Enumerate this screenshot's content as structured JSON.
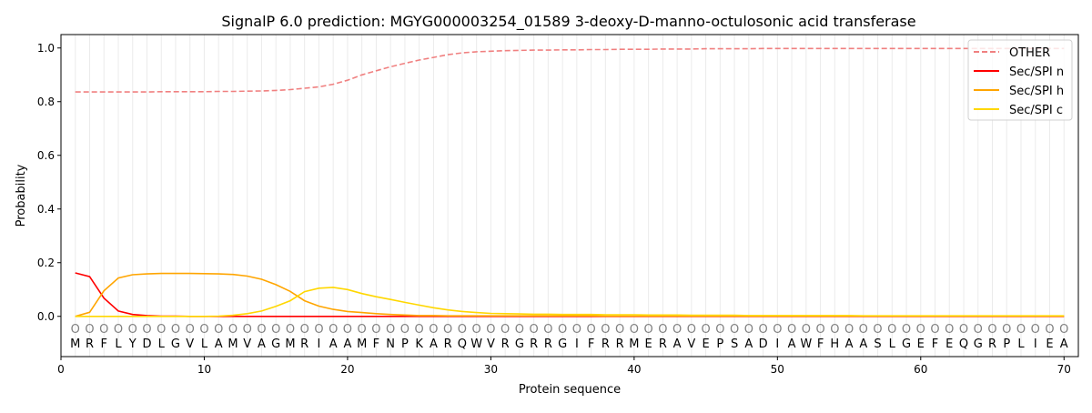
{
  "chart_data": {
    "type": "line",
    "title": "SignalP 6.0 prediction: MGYG000003254_01589 3-deoxy-D-manno-octulosonic acid transferase",
    "xlabel": "Protein sequence",
    "ylabel": "Probability",
    "xlim": [
      0,
      71
    ],
    "ylim": [
      -0.15,
      1.05
    ],
    "xticks": [
      0,
      10,
      20,
      30,
      40,
      50,
      60,
      70
    ],
    "yticks": [
      0.0,
      0.2,
      0.4,
      0.6,
      0.8,
      1.0
    ],
    "grid": "vertical lines at each residue",
    "legend_placement": "top-right",
    "sequence": [
      "M",
      "R",
      "F",
      "L",
      "Y",
      "D",
      "L",
      "G",
      "V",
      "L",
      "A",
      "M",
      "V",
      "A",
      "G",
      "M",
      "R",
      "I",
      "A",
      "A",
      "M",
      "F",
      "N",
      "P",
      "K",
      "A",
      "R",
      "Q",
      "W",
      "V",
      "R",
      "G",
      "R",
      "R",
      "G",
      "I",
      "F",
      "R",
      "R",
      "M",
      "E",
      "R",
      "A",
      "V",
      "E",
      "P",
      "S",
      "A",
      "D",
      "I",
      "A",
      "W",
      "F",
      "H",
      "A",
      "A",
      "S",
      "L",
      "G",
      "E",
      "F",
      "E",
      "Q",
      "G",
      "R",
      "P",
      "L",
      "I",
      "E",
      "A"
    ],
    "region_labels": [
      "O",
      "O",
      "O",
      "O",
      "O",
      "O",
      "O",
      "O",
      "O",
      "O",
      "O",
      "O",
      "O",
      "O",
      "O",
      "O",
      "O",
      "O",
      "O",
      "O",
      "O",
      "O",
      "O",
      "O",
      "O",
      "O",
      "O",
      "O",
      "O",
      "O",
      "O",
      "O",
      "O",
      "O",
      "O",
      "O",
      "O",
      "O",
      "O",
      "O",
      "O",
      "O",
      "O",
      "O",
      "O",
      "O",
      "O",
      "O",
      "O",
      "O",
      "O",
      "O",
      "O",
      "O",
      "O",
      "O",
      "O",
      "O",
      "O",
      "O",
      "O",
      "O",
      "O",
      "O",
      "O",
      "O",
      "O",
      "O",
      "O",
      "O"
    ],
    "series": [
      {
        "name": "OTHER",
        "color": "#f08080",
        "dash": true,
        "values": [
          0.836,
          0.836,
          0.836,
          0.836,
          0.836,
          0.836,
          0.837,
          0.837,
          0.837,
          0.837,
          0.838,
          0.838,
          0.839,
          0.84,
          0.842,
          0.845,
          0.85,
          0.855,
          0.865,
          0.88,
          0.9,
          0.915,
          0.93,
          0.943,
          0.955,
          0.965,
          0.975,
          0.982,
          0.986,
          0.988,
          0.99,
          0.991,
          0.992,
          0.992,
          0.993,
          0.993,
          0.994,
          0.994,
          0.995,
          0.995,
          0.995,
          0.996,
          0.996,
          0.996,
          0.997,
          0.997,
          0.997,
          0.997,
          0.998,
          0.998,
          0.998,
          0.998,
          0.998,
          0.998,
          0.998,
          0.998,
          0.998,
          0.998,
          0.998,
          0.998,
          0.998,
          0.998,
          0.998,
          0.998,
          0.998,
          0.998,
          0.998,
          0.998,
          0.998,
          0.998
        ]
      },
      {
        "name": "Sec/SPI n",
        "color": "#ff0000",
        "dash": false,
        "values": [
          0.162,
          0.148,
          0.068,
          0.02,
          0.007,
          0.003,
          0.001,
          0.001,
          0,
          0,
          0,
          0,
          0,
          0,
          0,
          0,
          0,
          0,
          0,
          0,
          0,
          0,
          0,
          0,
          0,
          0,
          0,
          0,
          0,
          0,
          0,
          0,
          0,
          0,
          0,
          0,
          0,
          0,
          0,
          0,
          0,
          0,
          0,
          0,
          0,
          0,
          0,
          0,
          0,
          0,
          0,
          0,
          0,
          0,
          0,
          0,
          0,
          0,
          0,
          0,
          0,
          0,
          0,
          0,
          0,
          0,
          0,
          0,
          0,
          0
        ]
      },
      {
        "name": "Sec/SPI h",
        "color": "#ffa500",
        "dash": false,
        "values": [
          0.0,
          0.015,
          0.095,
          0.143,
          0.155,
          0.158,
          0.16,
          0.16,
          0.16,
          0.159,
          0.158,
          0.156,
          0.15,
          0.138,
          0.118,
          0.093,
          0.058,
          0.038,
          0.026,
          0.018,
          0.014,
          0.01,
          0.007,
          0.005,
          0.003,
          0.003,
          0.002,
          0.002,
          0.002,
          0.002,
          0.002,
          0.002,
          0.002,
          0.002,
          0.002,
          0.002,
          0.002,
          0.001,
          0.001,
          0.001,
          0.001,
          0.001,
          0.001,
          0.001,
          0.001,
          0.001,
          0.001,
          0.001,
          0.001,
          0.001,
          0.001,
          0.001,
          0.001,
          0.001,
          0.001,
          0.001,
          0.001,
          0.001,
          0.001,
          0.001,
          0.001,
          0.001,
          0.001,
          0.001,
          0.001,
          0.001,
          0.001,
          0.001,
          0.001,
          0.001
        ]
      },
      {
        "name": "Sec/SPI c",
        "color": "#ffd700",
        "dash": false,
        "values": [
          0,
          0,
          0,
          0,
          0,
          0,
          0,
          0,
          0,
          0,
          0.001,
          0.004,
          0.01,
          0.02,
          0.037,
          0.058,
          0.092,
          0.105,
          0.108,
          0.1,
          0.085,
          0.073,
          0.063,
          0.052,
          0.042,
          0.032,
          0.024,
          0.018,
          0.014,
          0.011,
          0.01,
          0.009,
          0.008,
          0.008,
          0.007,
          0.007,
          0.007,
          0.006,
          0.006,
          0.006,
          0.005,
          0.005,
          0.005,
          0.004,
          0.004,
          0.004,
          0.004,
          0.003,
          0.003,
          0.003,
          0.003,
          0.003,
          0.003,
          0.003,
          0.003,
          0.002,
          0.002,
          0.002,
          0.002,
          0.002,
          0.002,
          0.002,
          0.002,
          0.002,
          0.002,
          0.002,
          0.002,
          0.002,
          0.002,
          0.002
        ]
      }
    ]
  }
}
